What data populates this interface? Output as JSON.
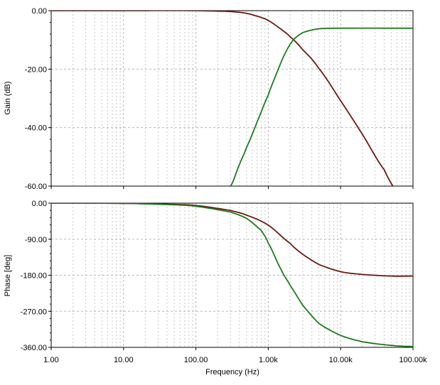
{
  "chart_data": [
    {
      "type": "line",
      "ylabel": "Gain (dB)",
      "xlabel": "",
      "xscale": "log",
      "xlim": [
        1,
        100000
      ],
      "ylim": [
        -60,
        0
      ],
      "ytick_labels": [
        "0.00",
        "-20.00",
        "-40.00",
        "-60.00"
      ],
      "ytick_values": [
        0,
        -20,
        -40,
        -60
      ],
      "grid": true,
      "series": [
        {
          "color": "#6b1a10",
          "x": [
            1,
            10,
            100,
            300,
            500,
            800,
            1000,
            1500,
            2000,
            3000,
            5000,
            10000,
            20000,
            40000,
            60000
          ],
          "y": [
            0,
            0,
            0,
            -0.3,
            -0.9,
            -2.3,
            -3.4,
            -6.3,
            -8.9,
            -13.4,
            -19.8,
            -30.8,
            -42.3,
            -54.4,
            -61.5
          ]
        },
        {
          "color": "#1e7a1e",
          "x": [
            300,
            400,
            500,
            700,
            1000,
            1300,
            1700,
            2200,
            3000,
            5000,
            10000,
            100000
          ],
          "y": [
            -60,
            -52.6,
            -46.8,
            -38.1,
            -28.8,
            -21.5,
            -14.7,
            -10.1,
            -7.5,
            -6.2,
            -6.0,
            -6.0
          ]
        }
      ]
    },
    {
      "type": "line",
      "ylabel": "Phase [deg]",
      "xlabel": "Frequency (Hz)",
      "xscale": "log",
      "xlim": [
        1,
        100000
      ],
      "ylim": [
        -360,
        0
      ],
      "ytick_labels": [
        "0.00",
        "-90.00",
        "-180.00",
        "-270.00",
        "-360.00"
      ],
      "ytick_values": [
        0,
        -90,
        -180,
        -270,
        -360
      ],
      "xtick_labels": [
        "1.00",
        "10.00",
        "100.00",
        "1.00k",
        "10.00k",
        "100.00k"
      ],
      "xtick_values": [
        1,
        10,
        100,
        1000,
        10000,
        100000
      ],
      "grid": true,
      "series": [
        {
          "color": "#6b1a10",
          "x": [
            1,
            10,
            50,
            100,
            300,
            500,
            1000,
            2000,
            3000,
            5000,
            10000,
            20000,
            50000,
            100000
          ],
          "y": [
            0,
            -0.5,
            -3,
            -6,
            -18,
            -30,
            -55,
            -100,
            -128,
            -153,
            -171,
            -178,
            -182,
            -182
          ]
        },
        {
          "color": "#1e7a1e",
          "x": [
            1,
            10,
            50,
            100,
            300,
            500,
            800,
            1000,
            1500,
            2000,
            3000,
            5000,
            10000,
            20000,
            50000,
            100000
          ],
          "y": [
            0,
            -0.5,
            -4,
            -8,
            -22,
            -38,
            -68,
            -100,
            -165,
            -205,
            -255,
            -300,
            -330,
            -346,
            -355,
            -358
          ]
        }
      ]
    }
  ]
}
